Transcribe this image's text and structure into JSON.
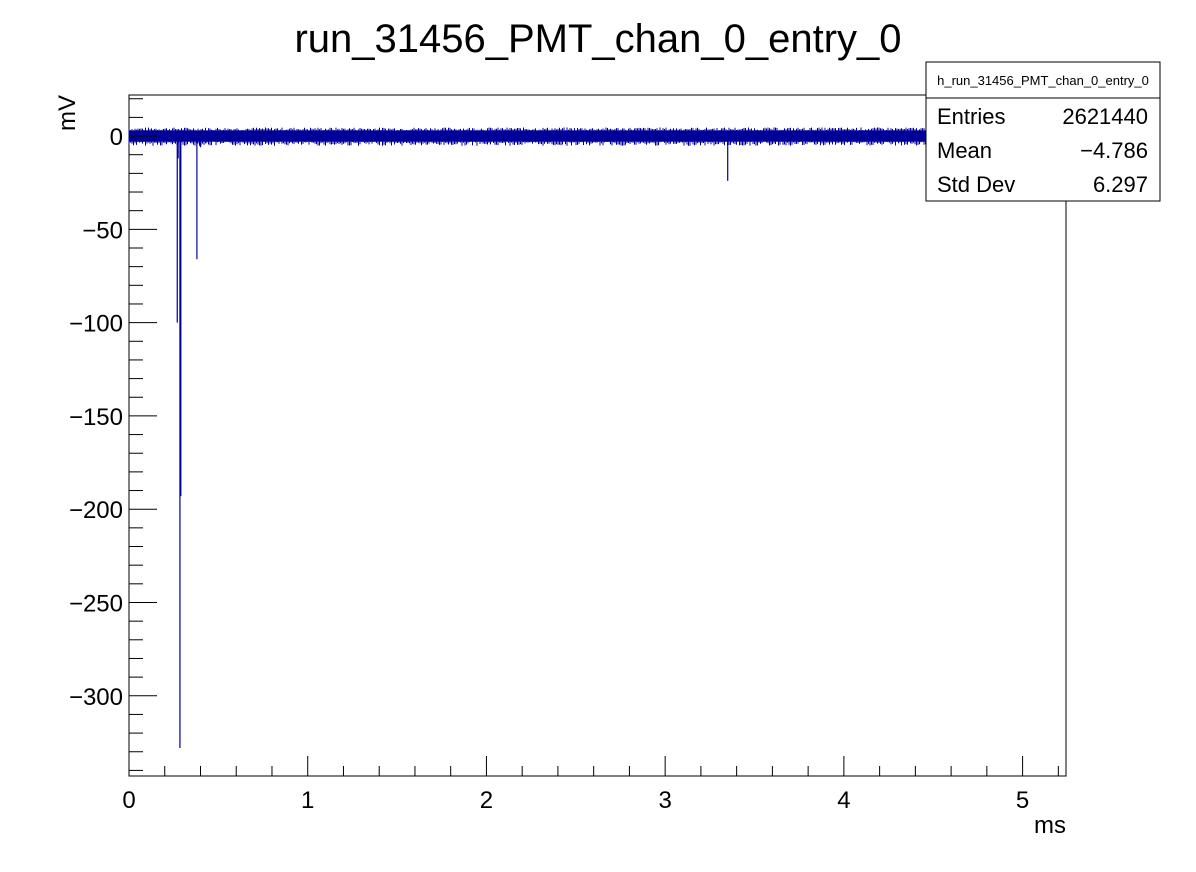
{
  "chart_data": {
    "type": "line",
    "title": "run_31456_PMT_chan_0_entry_0",
    "xlabel": "ms",
    "ylabel": "mV",
    "xlim": [
      0,
      5.24288
    ],
    "ylim": [
      -343,
      22
    ],
    "x_ticks": [
      0,
      1,
      2,
      3,
      4,
      5
    ],
    "x_tick_labels": [
      "0",
      "1",
      "2",
      "3",
      "4",
      "5"
    ],
    "y_ticks": [
      0,
      -50,
      -100,
      -150,
      -200,
      -250,
      -300
    ],
    "y_tick_labels": [
      "0",
      "−50",
      "−100",
      "−150",
      "−200",
      "−250",
      "−300"
    ],
    "grid": false,
    "line_color": "#000099",
    "baseline": {
      "y_min": -3,
      "y_max": 3,
      "x_start": 0,
      "x_end": 5.24288
    },
    "series": [
      {
        "points": [
          [
            0.27,
            -100
          ],
          [
            0.275,
            -12
          ],
          [
            0.285,
            -328
          ],
          [
            0.29,
            -193
          ],
          [
            0.38,
            -66
          ],
          [
            0.4,
            -6
          ],
          [
            0.43,
            -4
          ],
          [
            3.35,
            -24
          ]
        ]
      }
    ],
    "stats_box": {
      "name": "h_run_31456_PMT_chan_0_entry_0",
      "rows": [
        {
          "label": "Entries",
          "value": "2621440"
        },
        {
          "label": "Mean",
          "value": "−4.786"
        },
        {
          "label": "Std Dev",
          "value": "6.297"
        }
      ],
      "placement": "top-right"
    }
  }
}
